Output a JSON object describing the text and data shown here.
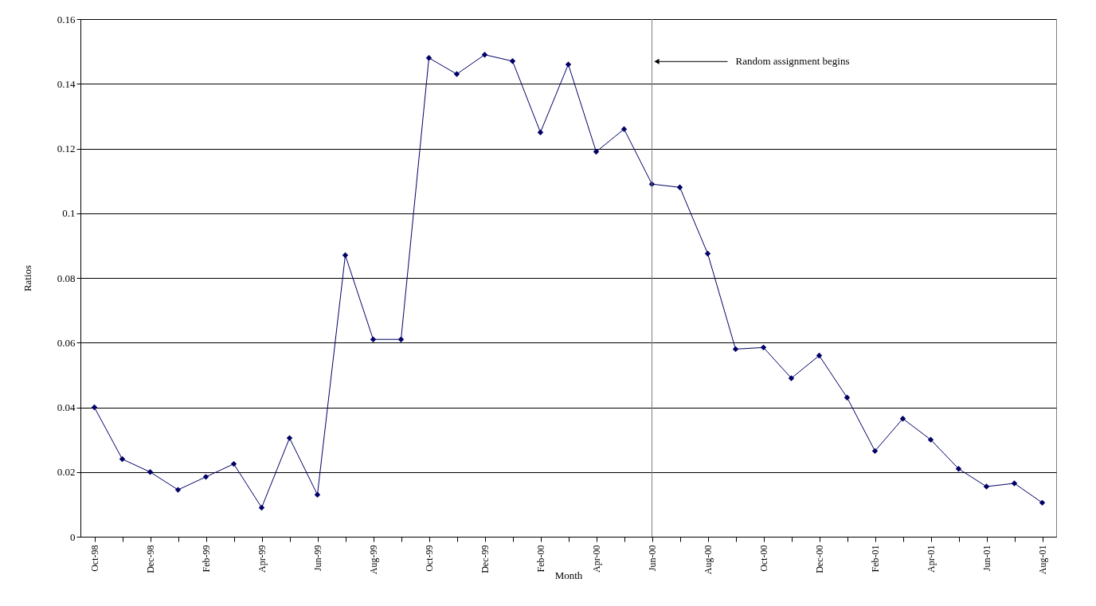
{
  "chart_data": {
    "type": "line",
    "xlabel": "Month",
    "ylabel": "Ratios",
    "categories": [
      "Oct-98",
      null,
      "Dec-98",
      null,
      "Feb-99",
      null,
      "Apr-99",
      null,
      "Jun-99",
      null,
      "Aug-99",
      null,
      "Oct-99",
      null,
      "Dec-99",
      null,
      "Feb-00",
      null,
      "Apr-00",
      null,
      "Jun-00",
      null,
      "Aug-00",
      null,
      "Oct-00",
      null,
      "Dec-00",
      null,
      "Feb-01",
      null,
      "Apr-01",
      null,
      "Jun-01",
      null,
      "Aug-01"
    ],
    "series": [
      {
        "color": "#000066",
        "values": [
          0.04,
          0.024,
          0.02,
          0.0145,
          0.0185,
          0.0225,
          0.009,
          0.0305,
          0.013,
          0.087,
          0.061,
          0.061,
          0.148,
          0.143,
          0.149,
          0.147,
          0.125,
          0.146,
          0.119,
          0.126,
          0.109,
          0.108,
          0.0875,
          0.058,
          0.0585,
          0.049,
          0.056,
          0.043,
          0.0265,
          0.0365,
          0.03,
          0.021,
          0.0155,
          0.0165,
          0.0105
        ]
      }
    ],
    "ylim": [
      0,
      0.16
    ],
    "yticks": [
      0,
      0.02,
      0.04,
      0.06,
      0.08,
      0.1,
      0.12,
      0.14,
      0.16
    ],
    "grid": "y",
    "marker": "diamond",
    "line_style": "solid",
    "ref_lines": [
      {
        "axis": "x",
        "value": "Jun-00",
        "label": "Random assignment begins",
        "color": "#808080"
      }
    ]
  }
}
